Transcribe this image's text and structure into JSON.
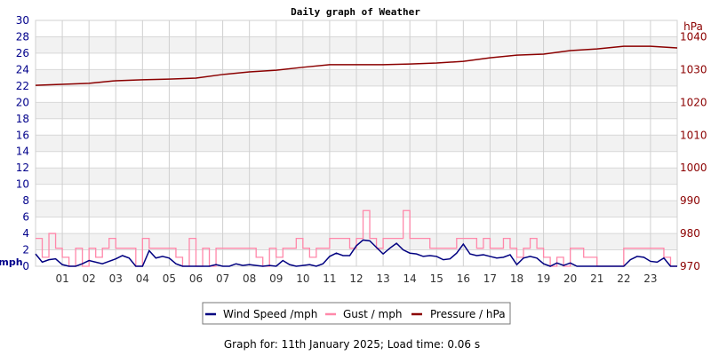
{
  "chart_data": {
    "type": "line",
    "title": "Daily graph of Weather",
    "ylabel_left": "mph",
    "ylabel_right": "hPa",
    "ylim_left": [
      0,
      30
    ],
    "ylim_right": [
      970,
      1045
    ],
    "left_ticks": [
      "0",
      "2",
      "4",
      "6",
      "8",
      "10",
      "12",
      "14",
      "16",
      "18",
      "20",
      "22",
      "24",
      "26",
      "28",
      "30"
    ],
    "right_ticks": [
      "970",
      "980",
      "990",
      "1000",
      "1010",
      "1020",
      "1030",
      "1040"
    ],
    "x_ticks": [
      "01",
      "02",
      "03",
      "04",
      "05",
      "06",
      "07",
      "08",
      "09",
      "10",
      "11",
      "12",
      "13",
      "14",
      "15",
      "16",
      "17",
      "18",
      "19",
      "20",
      "21",
      "22",
      "23"
    ],
    "xlim_hours": [
      0,
      24
    ],
    "grid": true,
    "legend_position": "bottom",
    "series": [
      {
        "name": "Wind Speed /mph",
        "color": "#000080",
        "axis": "left",
        "interval_hours": 0.25,
        "values": [
          1.5,
          0.5,
          0.8,
          0.9,
          0.2,
          0,
          0,
          0.3,
          0.7,
          0.5,
          0.3,
          0.6,
          0.9,
          1.3,
          1.0,
          0,
          0,
          1.9,
          1.0,
          1.2,
          1.0,
          0.3,
          0,
          0,
          0,
          0,
          0,
          0.2,
          0,
          0,
          0.3,
          0.1,
          0.2,
          0.1,
          0,
          0.1,
          0,
          0.7,
          0.2,
          0,
          0.1,
          0.2,
          0,
          0.3,
          1.2,
          1.6,
          1.3,
          1.3,
          2.5,
          3.2,
          3.1,
          2.3,
          1.5,
          2.2,
          2.8,
          2.0,
          1.6,
          1.5,
          1.2,
          1.3,
          1.2,
          0.8,
          0.9,
          1.6,
          2.7,
          1.5,
          1.3,
          1.4,
          1.2,
          1.0,
          1.1,
          1.4,
          0.2,
          1.0,
          1.2,
          1.0,
          0.3,
          0,
          0.4,
          0.1,
          0.4,
          0,
          0,
          0,
          0,
          0,
          0,
          0,
          0,
          0.8,
          1.2,
          1.1,
          0.6,
          0.5,
          1.0,
          0,
          0
        ]
      },
      {
        "name": "Gust / mph",
        "color": "#ff88aa",
        "axis": "left",
        "interval_hours": 0.25,
        "values": [
          3.4,
          1.1,
          4.0,
          2.2,
          1.1,
          0,
          2.2,
          0,
          2.2,
          1.1,
          2.2,
          3.4,
          2.2,
          2.2,
          2.2,
          0,
          3.4,
          2.2,
          2.2,
          2.2,
          2.2,
          1.1,
          0,
          3.4,
          0,
          2.2,
          0,
          2.2,
          2.2,
          2.2,
          2.2,
          2.2,
          2.2,
          1.1,
          0,
          2.2,
          1.1,
          2.2,
          2.2,
          3.4,
          2.2,
          1.1,
          2.2,
          2.2,
          3.4,
          3.4,
          3.4,
          2.2,
          3.4,
          6.8,
          3.4,
          2.2,
          3.4,
          3.4,
          3.4,
          6.8,
          3.4,
          3.4,
          3.4,
          2.2,
          2.2,
          2.2,
          2.2,
          3.4,
          3.4,
          3.4,
          2.2,
          3.4,
          2.2,
          2.2,
          3.4,
          2.2,
          1.1,
          2.2,
          3.4,
          2.2,
          1.1,
          0,
          1.1,
          0,
          2.2,
          2.2,
          1.1,
          1.1,
          0,
          0,
          0,
          0,
          2.2,
          2.2,
          2.2,
          2.2,
          2.2,
          2.2,
          1.1,
          0,
          0
        ]
      },
      {
        "name": "Pressure / hPa",
        "color": "#8b0000",
        "axis": "right",
        "interval_hours": 1,
        "values": [
          1025.2,
          1025.5,
          1025.8,
          1026.6,
          1026.9,
          1027.1,
          1027.4,
          1028.5,
          1029.3,
          1029.8,
          1030.7,
          1031.5,
          1031.5,
          1031.5,
          1031.7,
          1032.0,
          1032.5,
          1033.6,
          1034.4,
          1034.7,
          1035.8,
          1036.3,
          1037.1,
          1037.1,
          1036.6
        ]
      }
    ]
  },
  "footer": "Graph for: 11th January 2025; Load time: 0.06 s"
}
